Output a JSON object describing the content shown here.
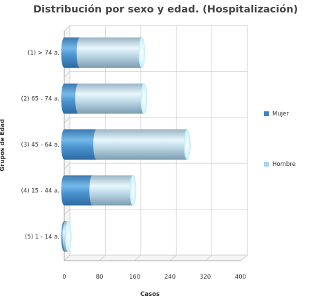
{
  "chart_data": {
    "type": "bar",
    "orientation": "horizontal",
    "stacked": true,
    "three_d": true,
    "title": "Distribución por sexo y edad. (Hospitalización)",
    "xlabel": "Casos",
    "ylabel": "Grupos de Edad",
    "categories": [
      "(1) > 74 a.",
      "(2) 65 - 74 a.",
      "(3) 45 - 64 a.",
      "(4) 15 - 44 a.",
      "(5) 1 - 14 a."
    ],
    "series": [
      {
        "name": "Mujer",
        "values": [
          35,
          32,
          73,
          64,
          3
        ],
        "color": "#3f86c3"
      },
      {
        "name": "Hombre",
        "values": [
          141,
          149,
          206,
          92,
          6
        ],
        "color": "#a9d4ee"
      }
    ],
    "xlim": [
      0,
      400
    ],
    "xticks": [
      "0",
      "80",
      "160",
      "240",
      "320",
      "400"
    ],
    "grid": true,
    "legend_position": "right"
  }
}
